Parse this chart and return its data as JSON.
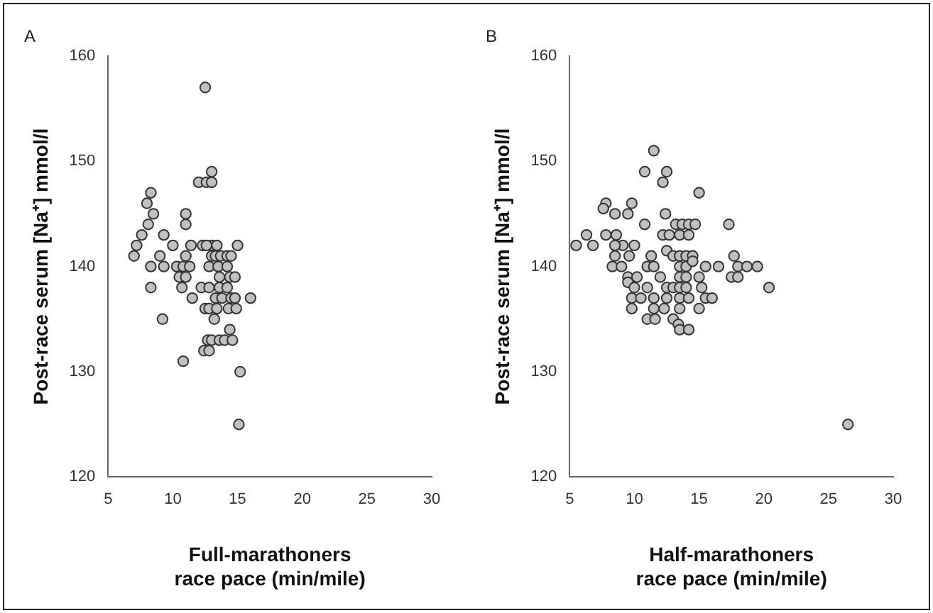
{
  "chart_data": [
    {
      "type": "scatter",
      "title": "A",
      "xlabel": "Full-marathoners\nrace pace (min/mile)",
      "ylabel": "Post-race serum [Na⁺] mmol/l",
      "color": "#c0c0c0",
      "marker": "circle",
      "grid": false,
      "legend": false,
      "xlim": [
        5,
        30
      ],
      "ylim": [
        120,
        160
      ],
      "xticks": [
        5,
        10,
        15,
        20,
        25,
        30
      ],
      "yticks": [
        120,
        130,
        140,
        150,
        160
      ],
      "x": [
        12.5,
        13,
        12,
        12.6,
        13,
        8.3,
        8,
        8.5,
        8.1,
        11,
        11,
        7.6,
        9.3,
        11.4,
        7.2,
        10,
        13,
        12.3,
        12.6,
        13.4,
        15,
        7,
        9,
        11,
        13,
        13.3,
        13.7,
        14.2,
        14.5,
        8.3,
        9.3,
        10.3,
        10.8,
        11.3,
        12.8,
        13.5,
        14.2,
        10.5,
        11,
        13.6,
        14.4,
        14.8,
        8.3,
        10.7,
        12.2,
        12.8,
        13.6,
        14.2,
        11.5,
        13.3,
        13.8,
        14.5,
        14.8,
        16,
        12.5,
        12.8,
        13.4,
        14.3,
        14.9,
        9.2,
        13.2,
        14.4,
        12.7,
        13,
        13.6,
        14,
        14.6,
        12.4,
        12.8,
        10.8,
        15.2,
        15.1
      ],
      "values": [
        157,
        149,
        148,
        148,
        148,
        147,
        146,
        145,
        144,
        145,
        144,
        143,
        143,
        142,
        142,
        142,
        142,
        142,
        142,
        142,
        142,
        141,
        141,
        141,
        141,
        141,
        141,
        141,
        141,
        140,
        140,
        140,
        140,
        140,
        140,
        140,
        140,
        139,
        139,
        139,
        139,
        139,
        138,
        138,
        138,
        138,
        138,
        138,
        137,
        137,
        137,
        137,
        137,
        137,
        136,
        136,
        136,
        136,
        136,
        135,
        135,
        134,
        133,
        133,
        133,
        133,
        133,
        132,
        132,
        131,
        130,
        125
      ]
    },
    {
      "type": "scatter",
      "title": "B",
      "xlabel": "Half-marathoners\nrace pace (min/mile)",
      "ylabel": "Post-race serum [Na⁺] mmol/l",
      "color": "#c0c0c0",
      "marker": "circle",
      "grid": false,
      "legend": false,
      "xlim": [
        5,
        30
      ],
      "ylim": [
        120,
        160
      ],
      "xticks": [
        5,
        10,
        15,
        20,
        25,
        30
      ],
      "yticks": [
        120,
        130,
        140,
        150,
        160
      ],
      "x": [
        11.5,
        10.8,
        12.5,
        12.2,
        15,
        7.8,
        7.6,
        8.5,
        9.8,
        9.5,
        12.4,
        10.8,
        13.2,
        13.7,
        14.2,
        14.7,
        17.3,
        5.5,
        6.3,
        7.8,
        8.6,
        9.1,
        10,
        12.2,
        12.7,
        13.5,
        14.2,
        6.8,
        8.5,
        8.5,
        9.6,
        11.3,
        12.5,
        13,
        13.5,
        14,
        14.5,
        17.7,
        8.3,
        9,
        11,
        11.5,
        13.5,
        14,
        14.5,
        15.5,
        16.5,
        18,
        18.7,
        19.5,
        9.5,
        10.2,
        12,
        13.5,
        14,
        15,
        17.5,
        18,
        9.5,
        10,
        11,
        12.5,
        13,
        13.5,
        14,
        15.2,
        20.4,
        9.8,
        10.5,
        11.5,
        12.5,
        13.5,
        14.2,
        15.5,
        16,
        9.8,
        11.5,
        12.3,
        13.5,
        15,
        11,
        11.6,
        13,
        13.4,
        13.5,
        14.2,
        26.5
      ],
      "values": [
        151,
        149,
        149,
        148,
        147,
        146,
        145.5,
        145,
        146,
        145,
        145,
        144,
        144,
        144,
        144,
        144,
        144,
        142,
        143,
        143,
        143,
        142,
        142,
        143,
        143,
        143,
        143,
        142,
        142,
        141,
        141,
        141,
        141.5,
        141,
        141,
        141,
        141,
        141,
        140,
        140,
        140,
        140,
        140,
        140,
        140.5,
        140,
        140,
        140,
        140,
        140,
        139,
        139,
        139,
        139,
        139,
        139,
        139,
        139,
        138.5,
        138,
        138,
        138,
        138,
        138,
        138,
        138,
        138,
        137,
        137,
        137,
        137,
        137,
        137,
        137,
        137,
        136,
        136,
        136,
        136,
        136,
        135,
        135,
        135,
        134.5,
        134,
        134,
        125
      ]
    }
  ]
}
